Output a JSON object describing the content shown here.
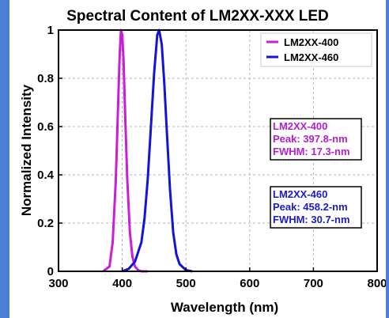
{
  "chart_data": {
    "type": "line",
    "title": "Spectral Content of LM2XX-XXX LED",
    "xlabel": "Wavelength (nm)",
    "ylabel": "Normalized Intensity",
    "xlim": [
      300,
      800
    ],
    "ylim": [
      0,
      1
    ],
    "xticks": [
      "300",
      "400",
      "500",
      "600",
      "700",
      "800"
    ],
    "yticks": [
      "0",
      "0.2",
      "0.4",
      "0.6",
      "0.8",
      "1"
    ],
    "grid": true,
    "legend_position": "top-right",
    "series": [
      {
        "name": "LM2XX-400",
        "color": "#c81ed8",
        "x": [
          370,
          380,
          385,
          390,
          393,
          396,
          398,
          400,
          402,
          405,
          408,
          412,
          416,
          420,
          425,
          430,
          440
        ],
        "y": [
          0,
          0.02,
          0.12,
          0.38,
          0.65,
          0.9,
          1.0,
          0.98,
          0.88,
          0.62,
          0.38,
          0.16,
          0.06,
          0.02,
          0.005,
          0,
          0
        ]
      },
      {
        "name": "LM2XX-460",
        "color": "#1414d8",
        "x": [
          400,
          410,
          420,
          430,
          435,
          440,
          445,
          450,
          455,
          458,
          462,
          466,
          470,
          475,
          480,
          485,
          490,
          500,
          510
        ],
        "y": [
          0,
          0.01,
          0.04,
          0.12,
          0.22,
          0.38,
          0.6,
          0.82,
          0.98,
          1.0,
          0.94,
          0.78,
          0.58,
          0.34,
          0.16,
          0.07,
          0.03,
          0.005,
          0
        ]
      }
    ],
    "annotations": [
      {
        "color": "#b41fd0",
        "lines": [
          "LM2XX-400",
          "Peak: 397.8-nm",
          "FWHM: 17.3-nm"
        ]
      },
      {
        "color": "#1a1ad0",
        "lines": [
          "LM2XX-460",
          "Peak: 458.2-nm",
          "FWHM: 30.7-nm"
        ]
      }
    ]
  }
}
